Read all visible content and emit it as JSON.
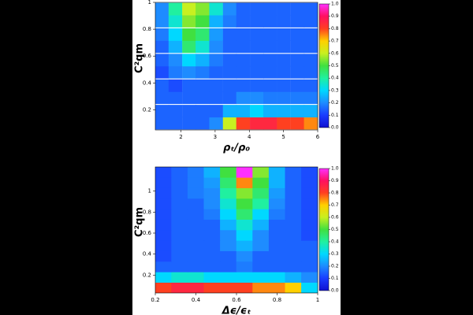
{
  "chart_data": [
    {
      "type": "heatmap",
      "xlabel": "ρₜ/ρ₀",
      "ylabel": "C²qm",
      "x": [
        1.45,
        1.84,
        2.24,
        2.63,
        3.03,
        3.43,
        3.82,
        4.22,
        4.61,
        5.01,
        5.41,
        5.8
      ],
      "y": [
        0.1,
        0.19,
        0.29,
        0.38,
        0.48,
        0.57,
        0.67,
        0.76,
        0.86,
        0.95
      ],
      "z": [
        [
          0.15,
          0.15,
          0.15,
          0.15,
          0.2,
          0.6,
          0.8,
          0.85,
          0.85,
          0.8,
          0.8,
          0.75
        ],
        [
          0.15,
          0.15,
          0.15,
          0.15,
          0.15,
          0.25,
          0.25,
          0.3,
          0.25,
          0.25,
          0.25,
          0.25
        ],
        [
          0.15,
          0.15,
          0.15,
          0.15,
          0.15,
          0.15,
          0.2,
          0.2,
          0.18,
          0.18,
          0.18,
          0.18
        ],
        [
          0.15,
          0.12,
          0.15,
          0.15,
          0.15,
          0.15,
          0.15,
          0.15,
          0.15,
          0.15,
          0.15,
          0.15
        ],
        [
          0.12,
          0.18,
          0.2,
          0.18,
          0.15,
          0.15,
          0.15,
          0.15,
          0.15,
          0.15,
          0.15,
          0.15
        ],
        [
          0.15,
          0.2,
          0.3,
          0.25,
          0.18,
          0.15,
          0.15,
          0.15,
          0.15,
          0.15,
          0.15,
          0.15
        ],
        [
          0.15,
          0.25,
          0.45,
          0.35,
          0.2,
          0.15,
          0.15,
          0.15,
          0.15,
          0.15,
          0.15,
          0.15
        ],
        [
          0.18,
          0.3,
          0.5,
          0.45,
          0.22,
          0.15,
          0.15,
          0.15,
          0.15,
          0.15,
          0.15,
          0.15
        ],
        [
          0.2,
          0.35,
          0.55,
          0.5,
          0.25,
          0.18,
          0.15,
          0.15,
          0.15,
          0.15,
          0.15,
          0.15
        ],
        [
          0.2,
          0.4,
          0.6,
          0.55,
          0.35,
          0.2,
          0.15,
          0.15,
          0.15,
          0.15,
          0.15,
          0.15
        ]
      ],
      "xlim": [
        1.25,
        6
      ],
      "ylim": [
        0.05,
        1
      ],
      "xticks": [
        2,
        3,
        4,
        5,
        6
      ],
      "yticks": [
        0.2,
        0.4,
        0.6,
        0.8,
        1
      ],
      "clim": [
        0,
        1
      ],
      "cticks": [
        {
          "value": 0,
          "label": "0.0"
        },
        0.1,
        0.2,
        0.3,
        0.4,
        0.5,
        0.6,
        0.7,
        0.8,
        0.9,
        {
          "value": 1,
          "label": "1.0"
        }
      ],
      "colorscale": [
        "#1010d0",
        "#1a3cff",
        "#1e8cff",
        "#00d8ff",
        "#20f0a0",
        "#40e040",
        "#c8f020",
        "#ffd000",
        "#ff4020",
        "#ff1060",
        "#ff30ff"
      ]
    },
    {
      "type": "heatmap",
      "xlabel": "Δϵ/ϵₜ",
      "ylabel": "C²qm",
      "x": [
        0.24,
        0.32,
        0.4,
        0.48,
        0.56,
        0.64,
        0.72,
        0.8,
        0.88,
        0.96
      ],
      "y": [
        0.08,
        0.18,
        0.28,
        0.38,
        0.48,
        0.58,
        0.68,
        0.78,
        0.88,
        0.98,
        1.08,
        1.18
      ],
      "z": [
        [
          0.8,
          0.85,
          0.85,
          0.8,
          0.8,
          0.8,
          0.75,
          0.75,
          0.7,
          0.3
        ],
        [
          0.3,
          0.35,
          0.35,
          0.3,
          0.3,
          0.3,
          0.3,
          0.3,
          0.25,
          0.2
        ],
        [
          0.15,
          0.15,
          0.15,
          0.15,
          0.15,
          0.18,
          0.15,
          0.15,
          0.15,
          0.15
        ],
        [
          0.12,
          0.15,
          0.15,
          0.15,
          0.15,
          0.2,
          0.15,
          0.15,
          0.15,
          0.15
        ],
        [
          0.12,
          0.15,
          0.15,
          0.15,
          0.2,
          0.25,
          0.2,
          0.15,
          0.15,
          0.15
        ],
        [
          0.12,
          0.15,
          0.15,
          0.15,
          0.2,
          0.3,
          0.2,
          0.15,
          0.15,
          0.12
        ],
        [
          0.12,
          0.15,
          0.15,
          0.15,
          0.25,
          0.35,
          0.25,
          0.15,
          0.15,
          0.12
        ],
        [
          0.12,
          0.15,
          0.15,
          0.18,
          0.3,
          0.45,
          0.3,
          0.18,
          0.15,
          0.12
        ],
        [
          0.12,
          0.15,
          0.15,
          0.2,
          0.35,
          0.5,
          0.4,
          0.2,
          0.15,
          0.12
        ],
        [
          0.12,
          0.15,
          0.18,
          0.2,
          0.4,
          0.55,
          0.45,
          0.22,
          0.15,
          0.12
        ],
        [
          0.12,
          0.15,
          0.18,
          0.22,
          0.45,
          0.75,
          0.5,
          0.25,
          0.15,
          0.12
        ],
        [
          0.12,
          0.15,
          0.18,
          0.25,
          0.5,
          1.0,
          0.55,
          0.25,
          0.15,
          0.12
        ]
      ],
      "xlim": [
        0.2,
        1
      ],
      "ylim": [
        0.03,
        1.23
      ],
      "xticks": [
        0.2,
        0.4,
        0.6,
        0.8,
        1
      ],
      "yticks": [
        0.2,
        0.4,
        0.6,
        0.8,
        1
      ],
      "clim": [
        0,
        1
      ],
      "cticks": [
        {
          "value": 0,
          "label": "0.0"
        },
        0.1,
        0.2,
        0.3,
        0.4,
        0.5,
        0.6,
        0.7,
        0.8,
        0.9,
        {
          "value": 1,
          "label": "1.0"
        }
      ],
      "colorscale": [
        "#1010d0",
        "#1a3cff",
        "#1e8cff",
        "#00d8ff",
        "#20f0a0",
        "#40e040",
        "#c8f020",
        "#ffd000",
        "#ff4020",
        "#ff1060",
        "#ff30ff"
      ]
    }
  ]
}
